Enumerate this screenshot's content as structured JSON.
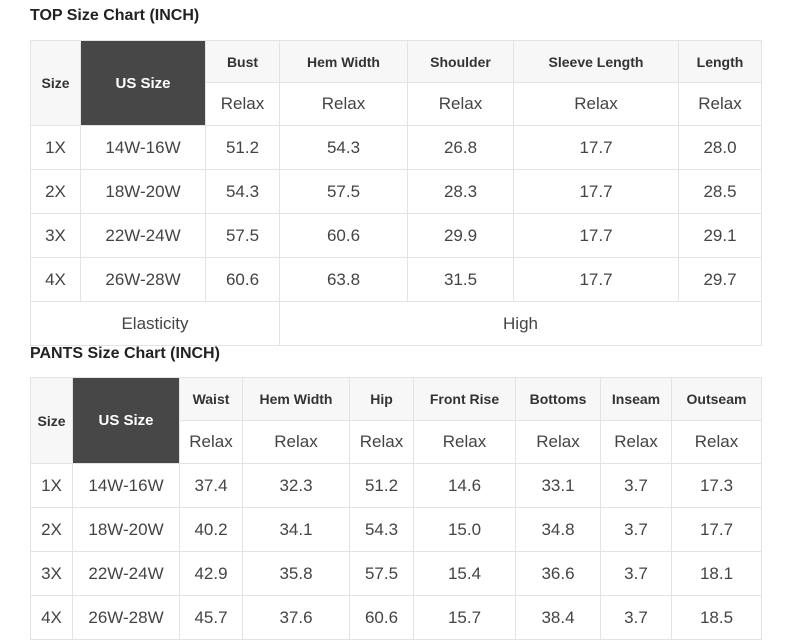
{
  "top": {
    "title": "TOP Size Chart (INCH)",
    "size_header": "Size",
    "us_header": "US Size",
    "columns": [
      "Bust",
      "Hem Width",
      "Shoulder",
      "Sleeve Length",
      "Length"
    ],
    "sub": "Relax",
    "rows": [
      [
        "1X",
        "14W-16W",
        "51.2",
        "54.3",
        "26.8",
        "17.7",
        "28.0"
      ],
      [
        "2X",
        "18W-20W",
        "54.3",
        "57.5",
        "28.3",
        "17.7",
        "28.5"
      ],
      [
        "3X",
        "22W-24W",
        "57.5",
        "60.6",
        "29.9",
        "17.7",
        "29.1"
      ],
      [
        "4X",
        "26W-28W",
        "60.6",
        "63.8",
        "31.5",
        "17.7",
        "29.7"
      ]
    ],
    "elasticity_label": "Elasticity",
    "elasticity_value": "High"
  },
  "pants": {
    "title": "PANTS Size Chart (INCH)",
    "size_header": "Size",
    "us_header": "US Size",
    "columns": [
      "Waist",
      "Hem Width",
      "Hip",
      "Front Rise",
      "Bottoms",
      "Inseam",
      "Outseam"
    ],
    "sub": "Relax",
    "rows": [
      [
        "1X",
        "14W-16W",
        "37.4",
        "32.3",
        "51.2",
        "14.6",
        "33.1",
        "3.7",
        "17.3"
      ],
      [
        "2X",
        "18W-20W",
        "40.2",
        "34.1",
        "54.3",
        "15.0",
        "34.8",
        "3.7",
        "17.7"
      ],
      [
        "3X",
        "22W-24W",
        "42.9",
        "35.8",
        "57.5",
        "15.4",
        "36.6",
        "3.7",
        "18.1"
      ],
      [
        "4X",
        "26W-28W",
        "45.7",
        "37.6",
        "60.6",
        "15.7",
        "38.4",
        "3.7",
        "18.5"
      ]
    ]
  },
  "colors": {
    "header_bg": "#f7f7f7",
    "us_header_bg": "#474747",
    "border": "#e3e3e3"
  }
}
